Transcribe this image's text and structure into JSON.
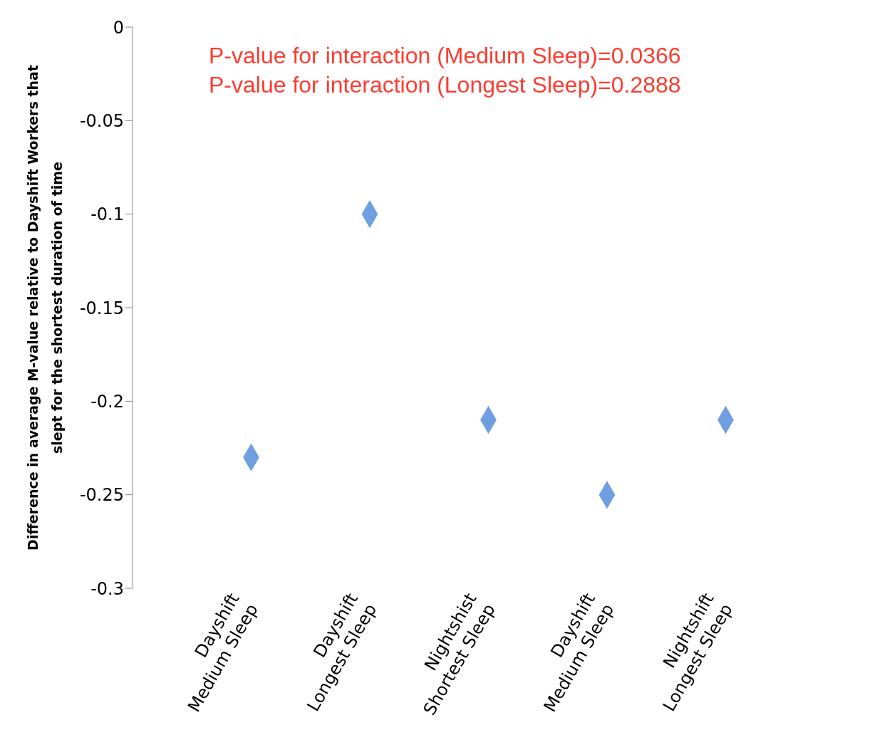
{
  "chart_data": {
    "type": "scatter",
    "ylabel": "Difference in average M-value relative to Dayshift Workers that\nslept for the shortest duration of time",
    "categories": [
      "Dayshift\nMedium Sleep",
      "Dayshift\nLongest Sleep",
      "Nightshist\nShortest Sleep",
      "Dayshift\nMedium Sleep",
      "Nightshift\nLongest Sleep"
    ],
    "series": [
      {
        "color": "#6f9fe0",
        "values": [
          -0.23,
          -0.1,
          -0.21,
          -0.25,
          -0.21
        ]
      }
    ],
    "ylim": [
      -0.3,
      0
    ],
    "yticks": [
      -0.3,
      -0.25,
      -0.2,
      -0.15,
      -0.1,
      -0.05,
      0
    ],
    "annotations": [
      "P-value for interaction (Medium Sleep)=0.0366",
      "P-value for interaction (Longest Sleep)=0.2888"
    ],
    "marker": "diamond",
    "grid": false,
    "legend": false
  }
}
